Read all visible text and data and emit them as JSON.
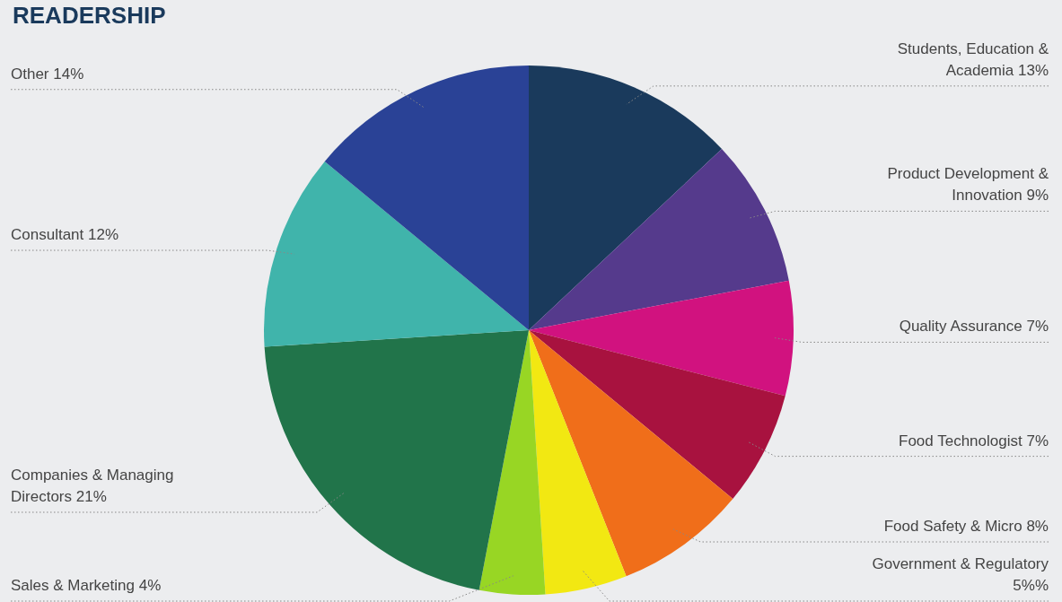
{
  "chart_data": {
    "type": "pie",
    "title": "READERSHIP",
    "categories": [
      "Students, Education & Academia",
      "Product Development & Innovation",
      "Quality Assurance",
      "Food Technologist",
      "Food Safety & Micro",
      "Government & Regulatory",
      "Sales & Marketing",
      "Companies & Managing Directors",
      "Consultant",
      "Other"
    ],
    "values": [
      13,
      9,
      7,
      7,
      8,
      5,
      4,
      21,
      12,
      14
    ],
    "value_labels": [
      "13%",
      "9%",
      "7%",
      "7%",
      "8%",
      "5%%",
      "4%",
      "21%",
      "12%",
      "14%"
    ],
    "colors": [
      "#1a3a5c",
      "#553a8c",
      "#d1127f",
      "#a8123f",
      "#f06e1a",
      "#f2e812",
      "#98d624",
      "#21744a",
      "#40b4ab",
      "#2a4296"
    ],
    "legend": false
  }
}
